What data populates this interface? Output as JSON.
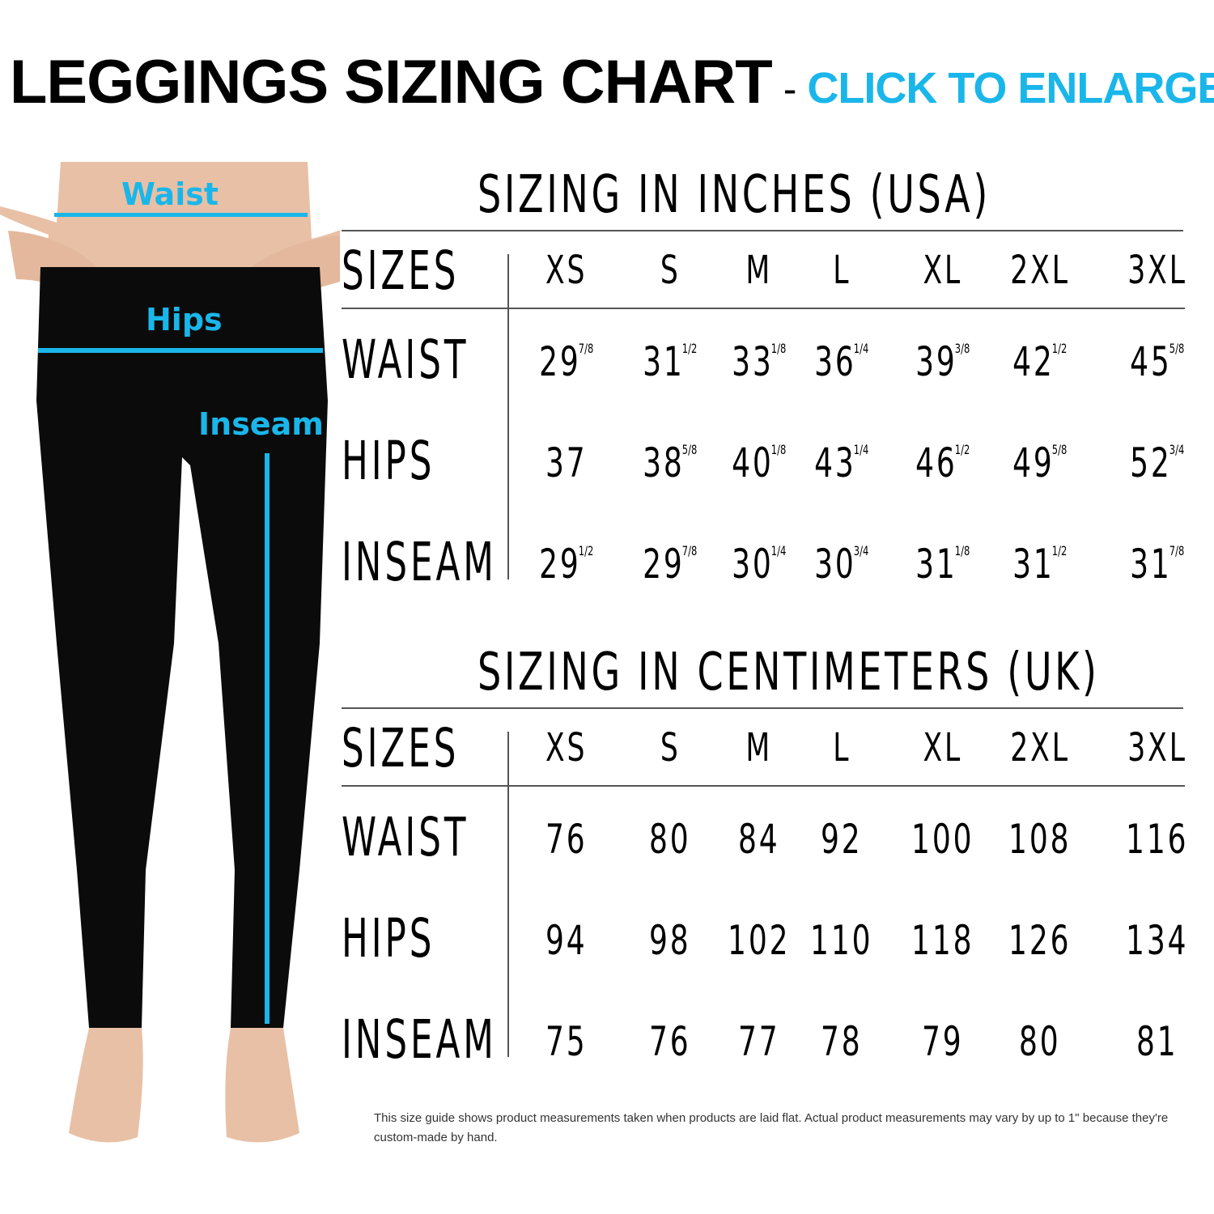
{
  "header": {
    "title": "LEGGINGS SIZING CHART",
    "separator": "-",
    "link_label": "CLICK TO ENLARGE",
    "accent_color": "#1ab6ea"
  },
  "illustration": {
    "labels": {
      "waist": "Waist",
      "hips": "Hips",
      "inseam": "Inseam"
    },
    "line_color": "#1ab6ea"
  },
  "inches": {
    "title": "SIZING IN INCHES (USA)",
    "sizes_label": "SIZES",
    "sizes": [
      "XS",
      "S",
      "M",
      "L",
      "XL",
      "2XL",
      "3XL"
    ],
    "rows": [
      {
        "label": "WAIST",
        "values": [
          {
            "w": "29",
            "f": "7/8"
          },
          {
            "w": "31",
            "f": "1/2"
          },
          {
            "w": "33",
            "f": "1/8"
          },
          {
            "w": "36",
            "f": "1/4"
          },
          {
            "w": "39",
            "f": "3/8"
          },
          {
            "w": "42",
            "f": "1/2"
          },
          {
            "w": "45",
            "f": "5/8"
          }
        ]
      },
      {
        "label": "HIPS",
        "values": [
          {
            "w": "37",
            "f": ""
          },
          {
            "w": "38",
            "f": "5/8"
          },
          {
            "w": "40",
            "f": "1/8"
          },
          {
            "w": "43",
            "f": "1/4"
          },
          {
            "w": "46",
            "f": "1/2"
          },
          {
            "w": "49",
            "f": "5/8"
          },
          {
            "w": "52",
            "f": "3/4"
          }
        ]
      },
      {
        "label": "INSEAM",
        "values": [
          {
            "w": "29",
            "f": "1/2"
          },
          {
            "w": "29",
            "f": "7/8"
          },
          {
            "w": "30",
            "f": "1/4"
          },
          {
            "w": "30",
            "f": "3/4"
          },
          {
            "w": "31",
            "f": "1/8"
          },
          {
            "w": "31",
            "f": "1/2"
          },
          {
            "w": "31",
            "f": "7/8"
          }
        ]
      }
    ]
  },
  "centimeters": {
    "title": "SIZING IN CENTIMETERS (UK)",
    "sizes_label": "SIZES",
    "sizes": [
      "XS",
      "S",
      "M",
      "L",
      "XL",
      "2XL",
      "3XL"
    ],
    "rows": [
      {
        "label": "WAIST",
        "values": [
          {
            "w": "76",
            "f": ""
          },
          {
            "w": "80",
            "f": ""
          },
          {
            "w": "84",
            "f": ""
          },
          {
            "w": "92",
            "f": ""
          },
          {
            "w": "100",
            "f": ""
          },
          {
            "w": "108",
            "f": ""
          },
          {
            "w": "116",
            "f": ""
          }
        ]
      },
      {
        "label": "HIPS",
        "values": [
          {
            "w": "94",
            "f": ""
          },
          {
            "w": "98",
            "f": ""
          },
          {
            "w": "102",
            "f": ""
          },
          {
            "w": "110",
            "f": ""
          },
          {
            "w": "118",
            "f": ""
          },
          {
            "w": "126",
            "f": ""
          },
          {
            "w": "134",
            "f": ""
          }
        ]
      },
      {
        "label": "INSEAM",
        "values": [
          {
            "w": "75",
            "f": ""
          },
          {
            "w": "76",
            "f": ""
          },
          {
            "w": "77",
            "f": ""
          },
          {
            "w": "78",
            "f": ""
          },
          {
            "w": "79",
            "f": ""
          },
          {
            "w": "80",
            "f": ""
          },
          {
            "w": "81",
            "f": ""
          }
        ]
      }
    ]
  },
  "note": "This size guide shows product measurements taken when products are laid flat. Actual product measurements may vary by up to 1\" because they're custom-made by hand."
}
